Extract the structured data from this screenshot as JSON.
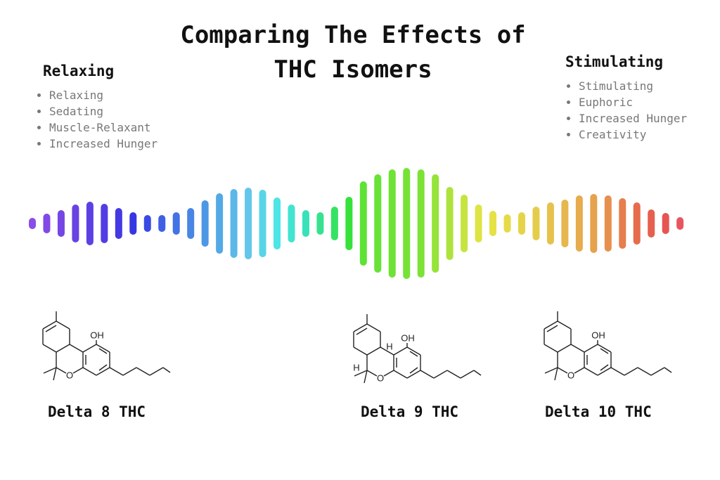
{
  "title": "Comparing The Effects of THC Isomers",
  "left_panel": {
    "heading": "Relaxing",
    "items": [
      "Relaxing",
      "Sedating",
      "Muscle-Relaxant",
      "Increased Hunger"
    ]
  },
  "right_panel": {
    "heading": "Stimulating",
    "items": [
      "Stimulating",
      "Euphoric",
      "Increased Hunger",
      "Creativity"
    ]
  },
  "molecules": [
    {
      "name": "Delta 8 THC",
      "atom_labels": [
        "OH",
        "O"
      ]
    },
    {
      "name": "Delta 9 THC",
      "atom_labels": [
        "OH",
        "O",
        "H",
        "H"
      ]
    },
    {
      "name": "Delta 10 THC",
      "atom_labels": [
        "OH",
        "O"
      ]
    }
  ]
}
